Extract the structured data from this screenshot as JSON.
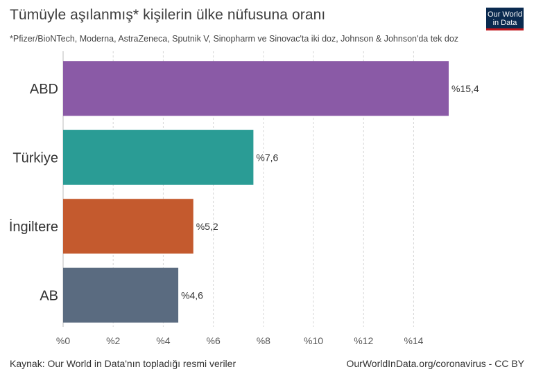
{
  "header": {
    "title": "Tümüyle aşılanmış* kişilerin ülke nüfusuna oranı",
    "subtitle": "*Pfizer/BioNTech, Moderna, AstraZeneca, Sputnik V, Sinopharm ve Sinovac'ta iki doz, Johnson & Johnson'da tek doz"
  },
  "logo": {
    "line1": "Our World",
    "line2": "in Data"
  },
  "footer": {
    "source": "Kaynak: Our World in Data'nın topladığı resmi veriler",
    "credit": "OurWorldInData.org/coronavirus - CC BY"
  },
  "chart_data": {
    "type": "bar",
    "orientation": "horizontal",
    "categories": [
      "ABD",
      "Türkiye",
      "İngiltere",
      "AB"
    ],
    "values": [
      15.4,
      7.6,
      5.2,
      4.6
    ],
    "value_labels": [
      "%15,4",
      "%7,6",
      "%5,2",
      "%4,6"
    ],
    "colors": [
      "#8a5aa6",
      "#2a9c95",
      "#c45a2e",
      "#5a6b80"
    ],
    "xlim": [
      0,
      16
    ],
    "x_ticks": [
      0,
      2,
      4,
      6,
      8,
      10,
      12,
      14
    ],
    "x_tick_labels": [
      "%0",
      "%2",
      "%4",
      "%6",
      "%8",
      "%10",
      "%12",
      "%14"
    ],
    "grid": "vertical-dashed"
  }
}
